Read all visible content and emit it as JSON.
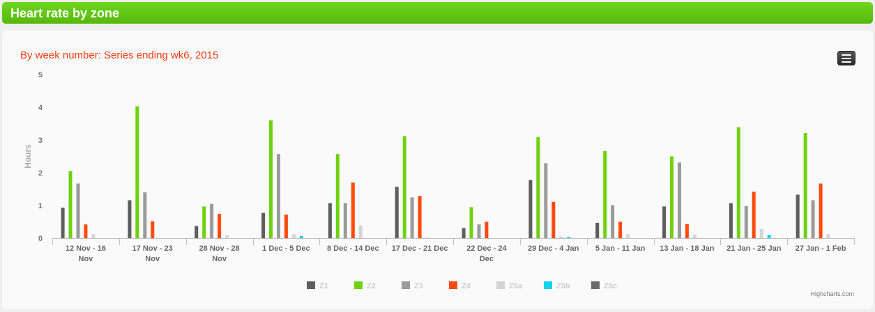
{
  "header": {
    "title": "Heart rate by zone"
  },
  "menu": {
    "icon": "hamburger-menu-icon"
  },
  "chart_data": {
    "type": "bar",
    "title": "By week number: Series ending wk6, 2015",
    "ylabel": "Hours",
    "xlabel": "",
    "ylim": [
      0,
      5
    ],
    "yticks": [
      "0",
      "1",
      "2",
      "3",
      "4",
      "5"
    ],
    "credits": "Highcharts.com",
    "legend_position": "bottom-center",
    "categories": [
      [
        "12 Nov - 16",
        "Nov"
      ],
      [
        "17 Nov - 23",
        "Nov"
      ],
      [
        "28 Nov - 28",
        "Nov"
      ],
      [
        "1 Dec - 5 Dec"
      ],
      [
        "8 Dec - 14 Dec"
      ],
      [
        "17 Dec - 21 Dec"
      ],
      [
        "22 Dec - 24",
        "Dec"
      ],
      [
        "29 Dec - 4 Jan"
      ],
      [
        "5 Jan - 11 Jan"
      ],
      [
        "13 Jan - 18 Jan"
      ],
      [
        "21 Jan - 25 Jan"
      ],
      [
        "27 Jan - 1 Feb"
      ]
    ],
    "series": [
      {
        "name": "Z1",
        "color": "#5e5e5e",
        "values": [
          0.93,
          1.16,
          0.37,
          0.77,
          1.07,
          1.57,
          0.31,
          1.78,
          0.47,
          0.97,
          1.07,
          1.33
        ]
      },
      {
        "name": "Z2",
        "color": "#6fd10f",
        "values": [
          2.05,
          4.03,
          0.97,
          3.6,
          2.57,
          3.12,
          0.95,
          3.09,
          2.66,
          2.5,
          3.39,
          3.21
        ]
      },
      {
        "name": "Z3",
        "color": "#9b9b9b",
        "values": [
          1.67,
          1.4,
          1.05,
          2.57,
          1.07,
          1.25,
          0.42,
          2.29,
          1.01,
          2.31,
          0.98,
          1.16
        ]
      },
      {
        "name": "Z4",
        "color": "#ff4a0d",
        "values": [
          0.42,
          0.52,
          0.74,
          0.72,
          1.7,
          1.29,
          0.5,
          1.11,
          0.5,
          0.43,
          1.42,
          1.67
        ]
      },
      {
        "name": "Z5a",
        "color": "#d4d4d4",
        "values": [
          0.12,
          0,
          0.09,
          0.12,
          0.39,
          0.02,
          0,
          0.05,
          0.12,
          0.11,
          0.28,
          0.12
        ]
      },
      {
        "name": "Z5b",
        "color": "#16d4ee",
        "values": [
          0,
          0,
          0,
          0.07,
          0,
          0,
          0,
          0.04,
          0,
          0,
          0.1,
          0
        ]
      },
      {
        "name": "Z5c",
        "color": "#6a6a6a",
        "values": [
          0,
          0,
          0,
          0,
          0,
          0,
          0,
          0,
          0,
          0,
          0,
          0
        ]
      }
    ]
  }
}
